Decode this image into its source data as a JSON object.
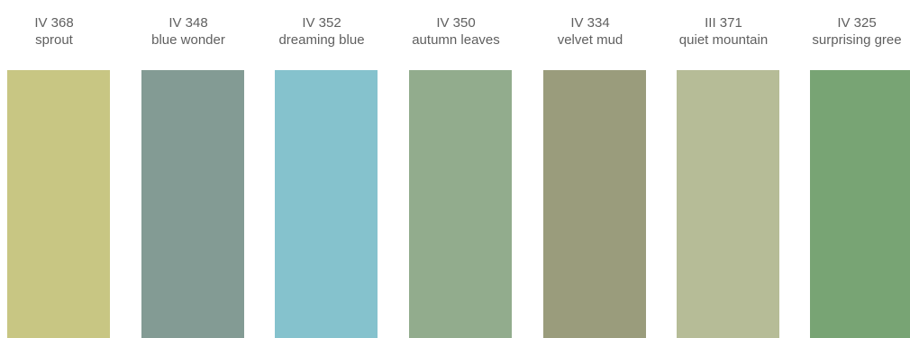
{
  "swatches": [
    {
      "code": "IV 368",
      "name": "sprout",
      "color": "#c8c683"
    },
    {
      "code": "IV 348",
      "name": "blue wonder",
      "color": "#839b94"
    },
    {
      "code": "IV 352",
      "name": "dreaming blue",
      "color": "#85c2cd"
    },
    {
      "code": "IV 350",
      "name": "autumn leaves",
      "color": "#92ac8d"
    },
    {
      "code": "IV 334",
      "name": "velvet mud",
      "color": "#9a9c7c"
    },
    {
      "code": "III 371",
      "name": "quiet mountain",
      "color": "#b6bc97"
    },
    {
      "code": "IV 325",
      "name": "surprising gree",
      "color": "#78a474"
    }
  ]
}
